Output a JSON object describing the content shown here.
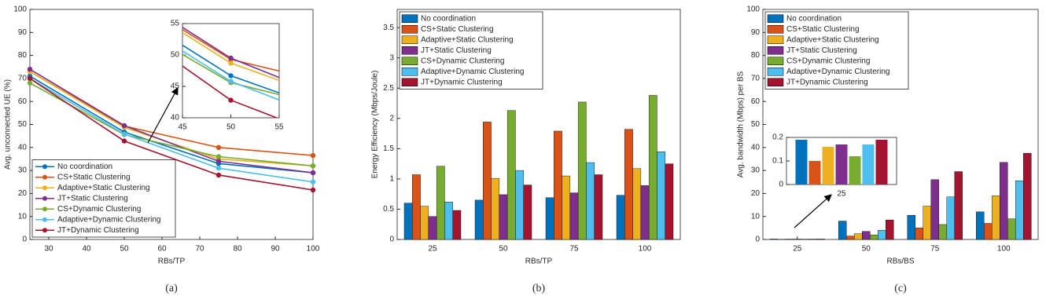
{
  "chart_data": [
    {
      "type": "line",
      "caption": "(a)",
      "xlabel": "RBs/TP",
      "ylabel": "Avg. unconnected UE (%)",
      "x": [
        25,
        50,
        75,
        100
      ],
      "xlim": [
        25,
        100
      ],
      "xticks": [
        30,
        40,
        50,
        60,
        70,
        80,
        90,
        100
      ],
      "ylim": [
        0,
        100
      ],
      "yticks": [
        0,
        10,
        20,
        30,
        40,
        50,
        60,
        70,
        80,
        90,
        100
      ],
      "legend": "lower left",
      "series": [
        {
          "name": "No coordination",
          "color": "#0072bd",
          "values": [
            71,
            46.7,
            33,
            29
          ]
        },
        {
          "name": "CS+Static Clustering",
          "color": "#d95319",
          "values": [
            73,
            49.3,
            40,
            36.5
          ]
        },
        {
          "name": "Adaptive+Static Clustering",
          "color": "#edb120",
          "values": [
            73,
            48.7,
            35,
            32
          ]
        },
        {
          "name": "JT+Static Clustering",
          "color": "#7e2f8e",
          "values": [
            74,
            49.5,
            34,
            29
          ]
        },
        {
          "name": "CS+Dynamic Clustering",
          "color": "#77ac30",
          "values": [
            68,
            45.6,
            36,
            32
          ]
        },
        {
          "name": "Adaptive+Dynamic Clustering",
          "color": "#4dbeee",
          "values": [
            70,
            45.8,
            31,
            25
          ]
        },
        {
          "name": "JT+Dynamic Clustering",
          "color": "#a2142f",
          "values": [
            70,
            42.8,
            28,
            21.5
          ]
        }
      ],
      "inset": {
        "xlim": [
          45,
          55
        ],
        "xticks": [
          45,
          50,
          55
        ],
        "ylim": [
          40,
          55
        ],
        "yticks": [
          40,
          45,
          50,
          55
        ]
      }
    },
    {
      "type": "bar",
      "caption": "(b)",
      "xlabel": "RBs/TP",
      "ylabel": "Energy Efficiency (Mbps/Joule)",
      "categories": [
        "25",
        "50",
        "75",
        "100"
      ],
      "ylim": [
        0,
        3.8
      ],
      "yticks": [
        0,
        0.5,
        1,
        1.5,
        2,
        2.5,
        3,
        3.5
      ],
      "legend": "upper left",
      "series": [
        {
          "name": "No coordination",
          "color": "#0072bd",
          "values": [
            0.6,
            0.65,
            0.69,
            0.73
          ]
        },
        {
          "name": "CS+Static Clustering",
          "color": "#d95319",
          "values": [
            1.07,
            1.94,
            1.79,
            1.82
          ]
        },
        {
          "name": "Adaptive+Static Clustering",
          "color": "#edb120",
          "values": [
            0.55,
            1.01,
            1.05,
            1.17
          ]
        },
        {
          "name": "JT+Static Clustering",
          "color": "#7e2f8e",
          "values": [
            0.38,
            0.74,
            0.77,
            0.89
          ]
        },
        {
          "name": "CS+Dynamic Clustering",
          "color": "#77ac30",
          "values": [
            1.21,
            2.13,
            2.27,
            2.38
          ]
        },
        {
          "name": "Adaptive+Dynamic Clustering",
          "color": "#4dbeee",
          "values": [
            0.62,
            1.14,
            1.27,
            1.45
          ]
        },
        {
          "name": "JT+Dynamic Clustering",
          "color": "#a2142f",
          "values": [
            0.48,
            0.9,
            1.07,
            1.25
          ]
        }
      ]
    },
    {
      "type": "bar",
      "caption": "(c)",
      "xlabel": "RBs/BS",
      "ylabel": "Avg. bandwidth (Mbps) per BS",
      "categories": [
        "25",
        "50",
        "75",
        "100"
      ],
      "ylim": [
        0,
        100
      ],
      "yticks": [
        0,
        10,
        20,
        30,
        40,
        50,
        60,
        70,
        80,
        90,
        100
      ],
      "legend": "upper left",
      "series": [
        {
          "name": "No coordination",
          "color": "#0072bd",
          "values": [
            0.19,
            8,
            10.5,
            12
          ]
        },
        {
          "name": "CS+Static Clustering",
          "color": "#d95319",
          "values": [
            0.1,
            1.5,
            5,
            7
          ]
        },
        {
          "name": "Adaptive+Static Clustering",
          "color": "#edb120",
          "values": [
            0.16,
            2.5,
            14.5,
            19
          ]
        },
        {
          "name": "JT+Static Clustering",
          "color": "#7e2f8e",
          "values": [
            0.17,
            3.5,
            26,
            33.5
          ]
        },
        {
          "name": "CS+Dynamic Clustering",
          "color": "#77ac30",
          "values": [
            0.12,
            2,
            6.5,
            9
          ]
        },
        {
          "name": "Adaptive+Dynamic Clustering",
          "color": "#4dbeee",
          "values": [
            0.17,
            4,
            18.5,
            25.5
          ]
        },
        {
          "name": "JT+Dynamic Clustering",
          "color": "#a2142f",
          "values": [
            0.19,
            8.5,
            29.5,
            37.5
          ]
        }
      ],
      "inset": {
        "categories": [
          "25"
        ],
        "ylim": [
          0,
          0.2
        ],
        "yticks": [
          0,
          0.1,
          0.2
        ]
      }
    }
  ]
}
